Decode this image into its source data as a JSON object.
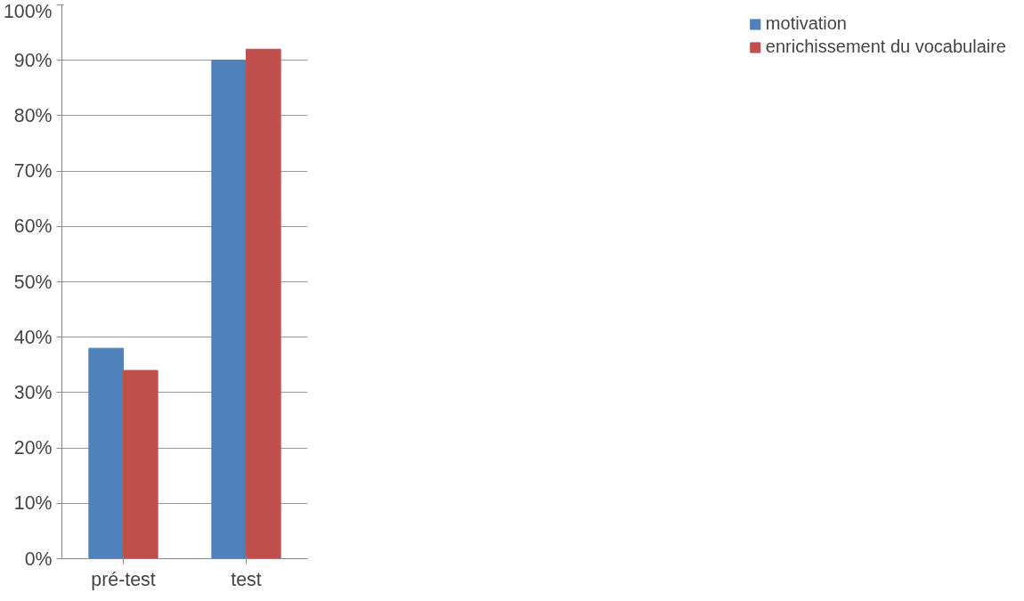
{
  "chart_data": {
    "type": "bar",
    "categories": [
      "pré-test",
      "test"
    ],
    "series": [
      {
        "name": "motivation",
        "color": "#4f81bd",
        "values": [
          38,
          90
        ]
      },
      {
        "name": "enrichissement du vocabulaire",
        "color": "#c0504d",
        "values": [
          34,
          92
        ]
      }
    ],
    "ylim": [
      0,
      100
    ],
    "yticks": [
      {
        "value": 0,
        "label": "0%"
      },
      {
        "value": 10,
        "label": "10%"
      },
      {
        "value": 20,
        "label": "20%"
      },
      {
        "value": 30,
        "label": "30%"
      },
      {
        "value": 40,
        "label": "40%"
      },
      {
        "value": 50,
        "label": "50%"
      },
      {
        "value": 60,
        "label": "60%"
      },
      {
        "value": 70,
        "label": "70%"
      },
      {
        "value": 80,
        "label": "80%"
      },
      {
        "value": 90,
        "label": "90%"
      },
      {
        "value": 100,
        "label": "100%"
      }
    ],
    "grid": "y",
    "legend": "right"
  }
}
